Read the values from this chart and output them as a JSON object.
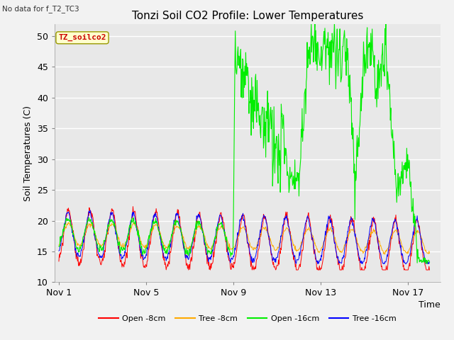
{
  "title": "Tonzi Soil CO2 Profile: Lower Temperatures",
  "subtitle": "No data for f_T2_TC3",
  "ylabel": "Soil Temperatures (C)",
  "xlabel": "Time",
  "ylim": [
    10,
    52
  ],
  "yticks": [
    10,
    15,
    20,
    25,
    30,
    35,
    40,
    45,
    50
  ],
  "xtick_labels": [
    "Nov 1",
    "Nov 5",
    "Nov 9",
    "Nov 13",
    "Nov 17"
  ],
  "xtick_positions": [
    0,
    4,
    8,
    12,
    16
  ],
  "legend_entries": [
    "Open -8cm",
    "Tree -8cm",
    "Open -16cm",
    "Tree -16cm"
  ],
  "legend_colors": [
    "#ff0000",
    "#ffaa00",
    "#00cc00",
    "#0000ff"
  ],
  "annotation_text": "TZ_soilco2",
  "bg_color": "#e0e0e0",
  "title_fontsize": 11,
  "axis_fontsize": 9,
  "fig_width": 6.4,
  "fig_height": 4.8,
  "dpi": 100
}
